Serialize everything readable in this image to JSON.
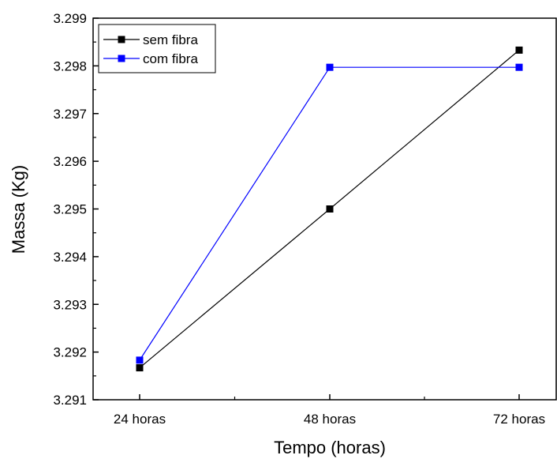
{
  "chart_data": {
    "type": "line",
    "categories": [
      "24 horas",
      "48 horas",
      "72 horas"
    ],
    "series": [
      {
        "name": "sem fibra",
        "values": [
          3.29167,
          3.295,
          3.29833
        ],
        "color": "#000000"
      },
      {
        "name": "com fibra",
        "values": [
          3.29183,
          3.29797,
          3.29797
        ],
        "color": "#0000ff"
      }
    ],
    "xlabel": "Tempo (horas)",
    "ylabel": "Massa (Kg)",
    "ylim": [
      3.291,
      3.299
    ],
    "yticks": [
      "3.291",
      "3.292",
      "3.293",
      "3.294",
      "3.295",
      "3.296",
      "3.297",
      "3.298",
      "3.299"
    ],
    "grid": false,
    "legend_position": "top-left"
  }
}
